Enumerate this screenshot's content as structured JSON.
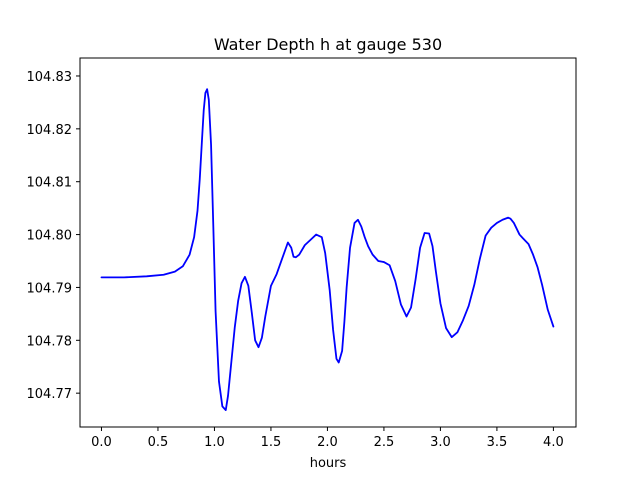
{
  "chart_data": {
    "type": "line",
    "title": "Water Depth h at gauge 530",
    "xlabel": "hours",
    "ylabel": "",
    "xlim": [
      -0.19,
      4.2
    ],
    "ylim": [
      104.7636,
      104.8334
    ],
    "xticks": [
      0.0,
      0.5,
      1.0,
      1.5,
      2.0,
      2.5,
      3.0,
      3.5,
      4.0
    ],
    "xtick_labels": [
      "0.0",
      "0.5",
      "1.0",
      "1.5",
      "2.0",
      "2.5",
      "3.0",
      "3.5",
      "4.0"
    ],
    "yticks": [
      104.77,
      104.78,
      104.79,
      104.8,
      104.81,
      104.82,
      104.83
    ],
    "ytick_labels": [
      "104.77",
      "104.78",
      "104.79",
      "104.80",
      "104.81",
      "104.82",
      "104.83"
    ],
    "grid": false,
    "legend": "none",
    "color": "#0000ff",
    "series": [
      {
        "x": [
          0.0,
          0.2,
          0.4,
          0.55,
          0.65,
          0.72,
          0.78,
          0.82,
          0.85,
          0.87,
          0.89,
          0.905,
          0.92,
          0.935,
          0.95,
          0.97,
          0.99,
          1.01,
          1.04,
          1.07,
          1.1,
          1.12,
          1.15,
          1.18,
          1.21,
          1.24,
          1.27,
          1.3,
          1.33,
          1.36,
          1.39,
          1.42,
          1.45,
          1.5,
          1.55,
          1.6,
          1.65,
          1.68,
          1.7,
          1.72,
          1.75,
          1.8,
          1.85,
          1.9,
          1.95,
          1.98,
          2.02,
          2.05,
          2.08,
          2.1,
          2.13,
          2.15,
          2.17,
          2.2,
          2.24,
          2.27,
          2.3,
          2.33,
          2.36,
          2.4,
          2.45,
          2.5,
          2.55,
          2.6,
          2.65,
          2.7,
          2.74,
          2.78,
          2.82,
          2.86,
          2.9,
          2.93,
          2.96,
          3.0,
          3.05,
          3.1,
          3.15,
          3.2,
          3.25,
          3.3,
          3.35,
          3.4,
          3.45,
          3.5,
          3.55,
          3.6,
          3.62,
          3.65,
          3.7,
          3.73,
          3.78,
          3.82,
          3.86,
          3.9,
          3.95,
          4.0
        ],
        "y": [
          104.7919,
          104.7919,
          104.7921,
          104.7924,
          104.793,
          104.794,
          104.7962,
          104.7995,
          104.8045,
          104.8105,
          104.818,
          104.8235,
          104.8268,
          104.8275,
          104.8255,
          104.817,
          104.8015,
          104.7855,
          104.7722,
          104.7675,
          104.7668,
          104.7695,
          104.776,
          104.7825,
          104.7875,
          104.7908,
          104.792,
          104.7903,
          104.7853,
          104.78,
          104.7787,
          104.7805,
          104.7845,
          104.7903,
          104.7925,
          104.7955,
          104.7985,
          104.7975,
          104.7958,
          104.7957,
          104.7962,
          104.798,
          104.799,
          104.8,
          104.7995,
          104.7965,
          104.7895,
          104.782,
          104.7765,
          104.7758,
          104.778,
          104.7835,
          104.79,
          104.7975,
          104.8022,
          104.8028,
          104.8015,
          104.7995,
          104.7978,
          104.7962,
          104.795,
          104.7948,
          104.7942,
          104.7912,
          104.7868,
          104.7845,
          104.7862,
          104.7915,
          104.7975,
          104.8003,
          104.8002,
          104.7978,
          104.793,
          104.787,
          104.7823,
          104.7806,
          104.7815,
          104.7838,
          104.7865,
          104.7905,
          104.7955,
          104.7998,
          104.8013,
          104.8022,
          104.8028,
          104.8032,
          104.803,
          104.8022,
          104.8,
          104.7993,
          104.7982,
          104.7962,
          104.7938,
          104.7905,
          104.7858,
          104.7826
        ]
      }
    ]
  }
}
